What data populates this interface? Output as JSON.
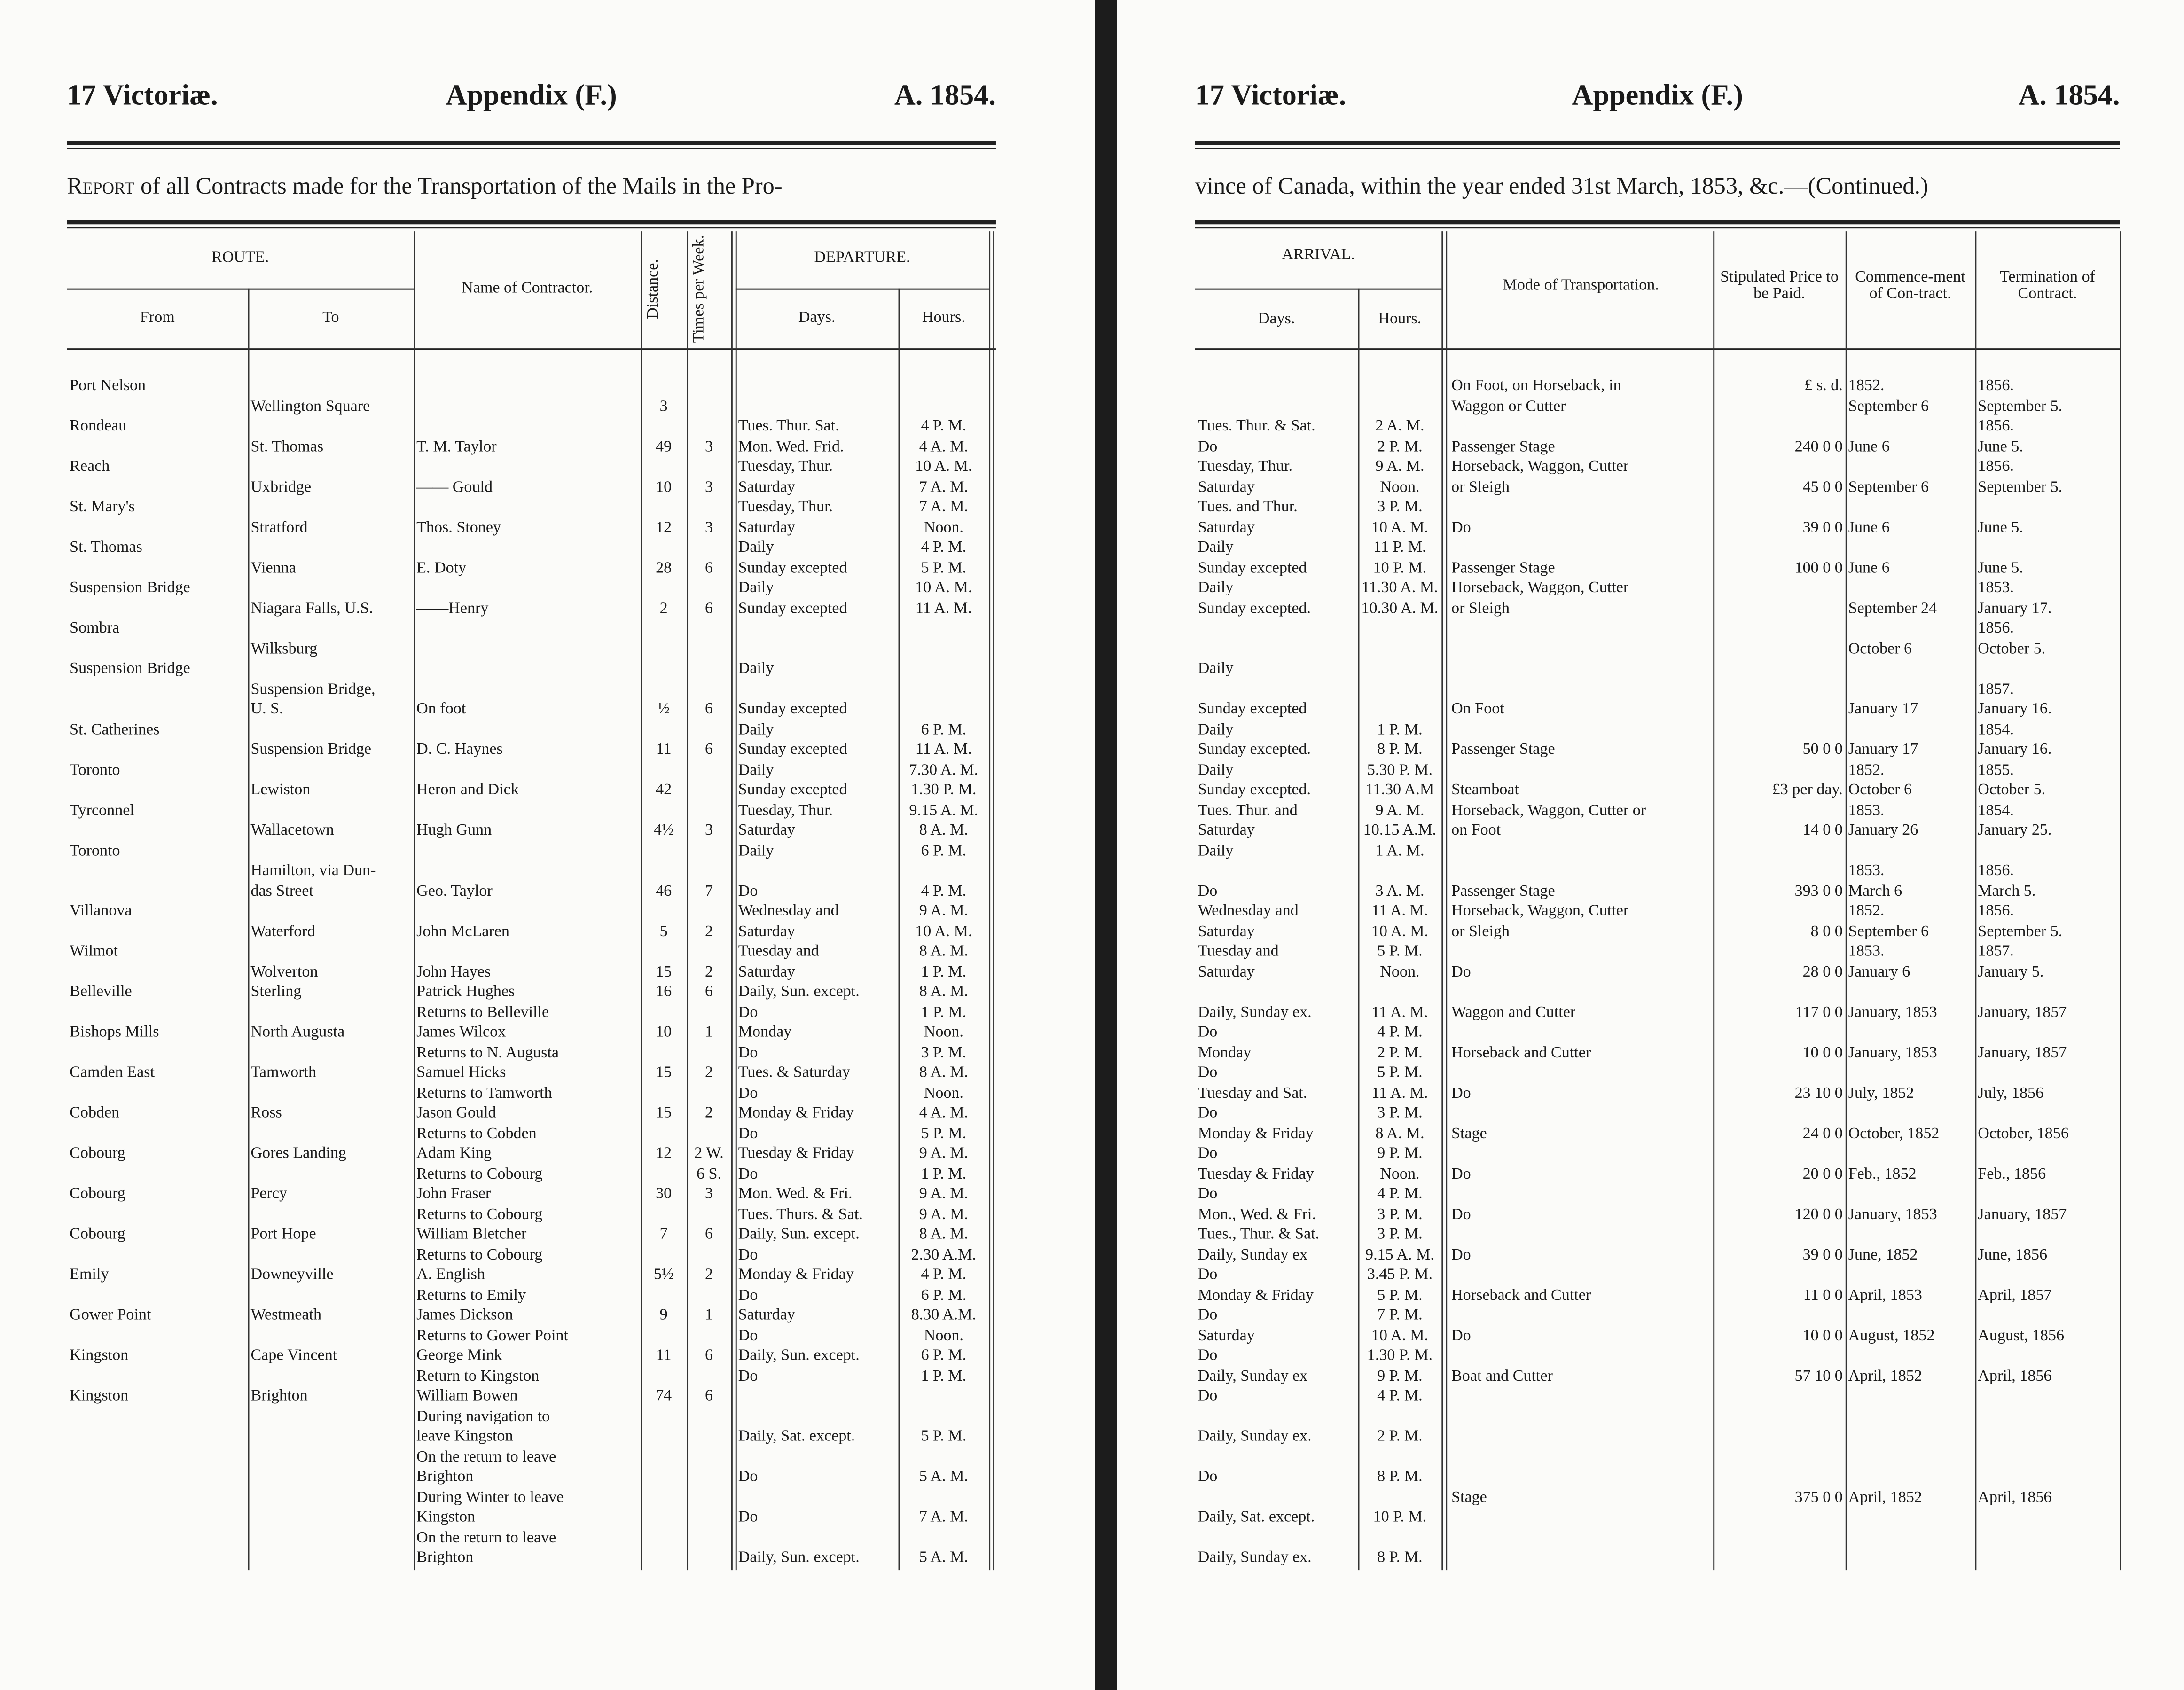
{
  "pages": [
    {
      "running_head": {
        "left": "17 Victoriæ.",
        "center": "Appendix (F.)",
        "right": "A. 1854."
      },
      "caption": {
        "lead": "Report",
        "text": "of all Contracts made for the Transportation of the Mails in the Pro-"
      },
      "table": {
        "headers": [
          "ROUTE.",
          "From",
          "To",
          "Name of Contractor.",
          "Distance.",
          "Times per Week.",
          "DEPARTURE.",
          "Days.",
          "Hours."
        ],
        "rows": [
          {
            "from": "Port Nelson"
          },
          {
            "to": "Wellington Square",
            "distance": "3"
          },
          {
            "from": "Rondeau",
            "days": "Tues. Thur. Sat.",
            "hours": "4 P. M."
          },
          {
            "to": "St. Thomas",
            "contractor": "T. M. Taylor",
            "distance": "49",
            "times": "3",
            "days": "Mon. Wed. Frid.",
            "hours": "4 A. M."
          },
          {
            "from": "Reach",
            "days": "Tuesday, Thur.",
            "hours": "10 A. M."
          },
          {
            "to": "Uxbridge",
            "contractor": "—— Gould",
            "distance": "10",
            "times": "3",
            "days": "Saturday",
            "hours": "7 A. M."
          },
          {
            "from": "St. Mary's",
            "days": "Tuesday, Thur.",
            "hours": "7 A. M."
          },
          {
            "to": "Stratford",
            "contractor": "Thos. Stoney",
            "distance": "12",
            "times": "3",
            "days": "Saturday",
            "hours": "Noon."
          },
          {
            "from": "St. Thomas",
            "days": "Daily",
            "hours": "4 P. M."
          },
          {
            "to": "Vienna",
            "contractor": "E. Doty",
            "distance": "28",
            "times": "6",
            "days": "Sunday excepted",
            "hours": "5 P. M."
          },
          {
            "from": "Suspension Bridge",
            "days": "Daily",
            "hours": "10 A. M."
          },
          {
            "to": "Niagara Falls, U.S.",
            "contractor": "——Henry",
            "distance": "2",
            "times": "6",
            "days": "Sunday excepted",
            "hours": "11 A. M."
          },
          {
            "from": "Sombra"
          },
          {
            "to": "Wilksburg"
          },
          {
            "from": "Suspension Bridge",
            "days": "Daily"
          },
          {
            "to": "Suspension Bridge,"
          },
          {
            "to": "U. S.",
            "contractor": "On foot",
            "distance": "½",
            "times": "6",
            "days": "Sunday excepted"
          },
          {
            "from": "St. Catherines",
            "days": "Daily",
            "hours": "6 P. M."
          },
          {
            "to": "Suspension Bridge",
            "contractor": "D. C. Haynes",
            "distance": "11",
            "times": "6",
            "days": "Sunday excepted",
            "hours": "11 A. M."
          },
          {
            "from": "Toronto",
            "days": "Daily",
            "hours": "7.30 A. M."
          },
          {
            "to": "Lewiston",
            "contractor": "Heron and Dick",
            "distance": "42",
            "days": "Sunday excepted",
            "hours": "1.30 P. M."
          },
          {
            "from": "Tyrconnel",
            "days": "Tuesday, Thur.",
            "hours": "9.15 A. M."
          },
          {
            "to": "Wallacetown",
            "contractor": "Hugh Gunn",
            "distance": "4½",
            "times": "3",
            "days": "Saturday",
            "hours": "8 A. M."
          },
          {
            "from": "Toronto",
            "days": "Daily",
            "hours": "6 P. M."
          },
          {
            "to": "Hamilton, via Dun-"
          },
          {
            "to": "das Street",
            "contractor": "Geo. Taylor",
            "distance": "46",
            "times": "7",
            "days": "Do",
            "hours": "4 P. M."
          },
          {
            "from": "Villanova",
            "days": "Wednesday and",
            "hours": "9 A. M."
          },
          {
            "to": "Waterford",
            "contractor": "John McLaren",
            "distance": "5",
            "times": "2",
            "days": "Saturday",
            "hours": "10 A. M."
          },
          {
            "from": "Wilmot",
            "days": "Tuesday and",
            "hours": "8 A. M."
          },
          {
            "to": "Wolverton",
            "contractor": "John Hayes",
            "distance": "15",
            "times": "2",
            "days": "Saturday",
            "hours": "1 P. M."
          },
          {
            "from": "Belleville",
            "to": "Sterling",
            "contractor": "Patrick Hughes",
            "distance": "16",
            "times": "6",
            "days": "Daily, Sun. except.",
            "hours": "8 A. M."
          },
          {
            "contractor": "Returns to Belleville",
            "days": "Do",
            "hours": "1 P. M."
          },
          {
            "from": "Bishops Mills",
            "to": "North Augusta",
            "contractor": "James Wilcox",
            "distance": "10",
            "times": "1",
            "days": "Monday",
            "hours": "Noon."
          },
          {
            "contractor": "Returns to N. Augusta",
            "days": "Do",
            "hours": "3 P. M."
          },
          {
            "from": "Camden East",
            "to": "Tamworth",
            "contractor": "Samuel Hicks",
            "distance": "15",
            "times": "2",
            "days": "Tues. & Saturday",
            "hours": "8 A. M."
          },
          {
            "contractor": "Returns to Tamworth",
            "days": "Do",
            "hours": "Noon."
          },
          {
            "from": "Cobden",
            "to": "Ross",
            "contractor": "Jason Gould",
            "distance": "15",
            "times": "2",
            "days": "Monday & Friday",
            "hours": "4 A. M."
          },
          {
            "contractor": "Returns to Cobden",
            "days": "Do",
            "hours": "5 P. M."
          },
          {
            "from": "Cobourg",
            "to": "Gores Landing",
            "contractor": "Adam King",
            "distance": "12",
            "times": "2 W.",
            "days": "Tuesday & Friday",
            "hours": "9 A. M."
          },
          {
            "contractor": "Returns to Cobourg",
            "times": "6 S.",
            "days": "Do",
            "hours": "1 P. M."
          },
          {
            "from": "Cobourg",
            "to": "Percy",
            "contractor": "John Fraser",
            "distance": "30",
            "times": "3",
            "days": "Mon. Wed. & Fri.",
            "hours": "9 A. M."
          },
          {
            "contractor": "Returns to Cobourg",
            "days": "Tues. Thurs. & Sat.",
            "hours": "9 A. M."
          },
          {
            "from": "Cobourg",
            "to": "Port Hope",
            "contractor": "William Bletcher",
            "distance": "7",
            "times": "6",
            "days": "Daily, Sun. except.",
            "hours": "8 A. M."
          },
          {
            "contractor": "Returns to Cobourg",
            "days": "Do",
            "hours": "2.30 A.M."
          },
          {
            "from": "Emily",
            "to": "Downeyville",
            "contractor": "A. English",
            "distance": "5½",
            "times": "2",
            "days": "Monday & Friday",
            "hours": "4 P. M."
          },
          {
            "contractor": "Returns to Emily",
            "days": "Do",
            "hours": "6 P. M."
          },
          {
            "from": "Gower Point",
            "to": "Westmeath",
            "contractor": "James Dickson",
            "distance": "9",
            "times": "1",
            "days": "Saturday",
            "hours": "8.30 A.M."
          },
          {
            "contractor": "Returns to Gower Point",
            "days": "Do",
            "hours": "Noon."
          },
          {
            "from": "Kingston",
            "to": "Cape Vincent",
            "contractor": "George Mink",
            "distance": "11",
            "times": "6",
            "days": "Daily, Sun. except.",
            "hours": "6 P. M."
          },
          {
            "contractor": "Return to Kingston",
            "days": "Do",
            "hours": "1 P. M."
          },
          {
            "from": "Kingston",
            "to": "Brighton",
            "contractor": "William Bowen",
            "distance": "74",
            "times": "6"
          },
          {
            "contractor": "During navigation to"
          },
          {
            "contractor": "leave Kingston",
            "days": "Daily, Sat. except.",
            "hours": "5 P. M."
          },
          {
            "contractor": "On the return to leave"
          },
          {
            "contractor": "Brighton",
            "days": "Do",
            "hours": "5 A. M."
          },
          {
            "contractor": "During Winter to leave"
          },
          {
            "contractor": "Kingston",
            "days": "Do",
            "hours": "7 A. M."
          },
          {
            "contractor": "On the return to leave"
          },
          {
            "contractor": "Brighton",
            "days": "Daily, Sun. except.",
            "hours": "5 A. M."
          }
        ]
      }
    },
    {
      "running_head": {
        "left": "17 Victoriæ.",
        "center": "Appendix (F.)",
        "right": "A. 1854."
      },
      "caption": {
        "text": "vince of Canada, within the year ended 31st March, 1853, &c.—(Continued.)"
      },
      "table": {
        "headers": [
          "ARRIVAL.",
          "Days.",
          "Hours.",
          "Mode of Transportation.",
          "Stipulated Price to be Paid.",
          "Commence-ment of Con-tract.",
          "Termination of Contract."
        ],
        "rows": [
          {
            "mode": "On Foot, on Horseback, in",
            "price": "£ s. d.",
            "commencement": "1852.",
            "termination": "1856."
          },
          {
            "mode": "Waggon or Cutter",
            "commencement": "September 6",
            "termination": "September 5."
          },
          {
            "days": "Tues. Thur. & Sat.",
            "hours": "2 A. M.",
            "termination": "1856."
          },
          {
            "days": "Do",
            "hours": "2 P. M.",
            "mode": "Passenger Stage",
            "price": "240  0  0",
            "commencement": "June 6",
            "termination": "June 5."
          },
          {
            "days": "Tuesday, Thur.",
            "hours": "9 A. M.",
            "mode": "Horseback, Waggon, Cutter",
            "termination": "1856."
          },
          {
            "days": "Saturday",
            "hours": "Noon.",
            "mode": "or Sleigh",
            "price": "45  0  0",
            "commencement": "September 6",
            "termination": "September 5."
          },
          {
            "days": "Tues. and Thur.",
            "hours": "3 P. M."
          },
          {
            "days": "Saturday",
            "hours": "10 A. M.",
            "mode": "Do",
            "price": "39  0  0",
            "commencement": "June 6",
            "termination": "June 5."
          },
          {
            "days": "Daily",
            "hours": "11 P. M."
          },
          {
            "days": "Sunday excepted",
            "hours": "10 P. M.",
            "mode": "Passenger Stage",
            "price": "100  0  0",
            "commencement": "June 6",
            "termination": "June 5."
          },
          {
            "days": "Daily",
            "hours": "11.30 A. M.",
            "mode": "Horseback, Waggon, Cutter",
            "termination": "1853."
          },
          {
            "days": "Sunday excepted.",
            "hours": "10.30 A. M.",
            "mode": "or Sleigh",
            "commencement": "September 24",
            "termination": "January 17."
          },
          {
            "termination": "1856."
          },
          {
            "commencement": "October 6",
            "termination": "October 5."
          },
          {
            "days": "Daily"
          },
          {
            "termination": "1857."
          },
          {
            "days": "Sunday excepted",
            "mode": "On Foot",
            "commencement": "January 17",
            "termination": "January 16."
          },
          {
            "days": "Daily",
            "hours": "1 P. M.",
            "termination": "1854."
          },
          {
            "days": "Sunday excepted.",
            "hours": "8 P. M.",
            "mode": "Passenger Stage",
            "price": "50  0  0",
            "commencement": "January 17",
            "termination": "January 16."
          },
          {
            "days": "Daily",
            "hours": "5.30 P. M.",
            "commencement": "1852.",
            "termination": "1855."
          },
          {
            "days": "Sunday excepted.",
            "hours": "11.30 A.M",
            "mode": "Steamboat",
            "price": "£3 per day.",
            "commencement": "October 6",
            "termination": "October 5."
          },
          {
            "days": "Tues. Thur. and",
            "hours": "9 A. M.",
            "mode": "Horseback, Waggon, Cutter or",
            "commencement": "1853.",
            "termination": "1854."
          },
          {
            "days": "Saturday",
            "hours": "10.15 A.M.",
            "mode": "on Foot",
            "price": "14  0  0",
            "commencement": "January 26",
            "termination": "January 25."
          },
          {
            "days": "Daily",
            "hours": "1 A. M."
          },
          {
            "commencement": "1853.",
            "termination": "1856."
          },
          {
            "days": "Do",
            "hours": "3 A. M.",
            "mode": "Passenger Stage",
            "price": "393  0  0",
            "commencement": "March 6",
            "termination": "March 5."
          },
          {
            "days": "Wednesday and",
            "hours": "11 A. M.",
            "mode": "Horseback, Waggon, Cutter",
            "commencement": "1852.",
            "termination": "1856."
          },
          {
            "days": "Saturday",
            "hours": "10 A. M.",
            "mode": "or Sleigh",
            "price": "8  0  0",
            "commencement": "September 6",
            "termination": "September 5."
          },
          {
            "days": "Tuesday and",
            "hours": "5 P. M.",
            "commencement": "1853.",
            "termination": "1857."
          },
          {
            "days": "Saturday",
            "hours": "Noon.",
            "mode": "Do",
            "price": "28  0  0",
            "commencement": "January 6",
            "termination": "January 5."
          },
          {},
          {
            "days": "Daily, Sunday ex.",
            "hours": "11 A. M.",
            "mode": "Waggon and Cutter",
            "price": "117  0  0",
            "commencement": "January, 1853",
            "termination": "January, 1857"
          },
          {
            "days": "Do",
            "hours": "4 P. M."
          },
          {
            "days": "Monday",
            "hours": "2 P. M.",
            "mode": "Horseback and Cutter",
            "price": "10  0  0",
            "commencement": "January, 1853",
            "termination": "January, 1857"
          },
          {
            "days": "Do",
            "hours": "5 P. M."
          },
          {
            "days": "Tuesday and Sat.",
            "hours": "11 A. M.",
            "mode": "Do",
            "price": "23 10  0",
            "commencement": "July, 1852",
            "termination": "July, 1856"
          },
          {
            "days": "Do",
            "hours": "3 P. M."
          },
          {
            "days": "Monday & Friday",
            "hours": "8 A. M.",
            "mode": "Stage",
            "price": "24  0  0",
            "commencement": "October, 1852",
            "termination": "October, 1856"
          },
          {
            "days": "Do",
            "hours": "9 P. M."
          },
          {
            "days": "Tuesday & Friday",
            "hours": "Noon.",
            "mode": "Do",
            "price": "20  0  0",
            "commencement": "Feb., 1852",
            "termination": "Feb., 1856"
          },
          {
            "days": "Do",
            "hours": "4 P. M."
          },
          {
            "days": "Mon., Wed. & Fri.",
            "hours": "3 P. M.",
            "mode": "Do",
            "price": "120  0  0",
            "commencement": "January, 1853",
            "termination": "January, 1857"
          },
          {
            "days": "Tues., Thur. & Sat.",
            "hours": "3 P. M."
          },
          {
            "days": "Daily, Sunday ex",
            "hours": "9.15 A. M.",
            "mode": "Do",
            "price": "39  0  0",
            "commencement": "June, 1852",
            "termination": "June, 1856"
          },
          {
            "days": "Do",
            "hours": "3.45 P. M."
          },
          {
            "days": "Monday & Friday",
            "hours": "5 P. M.",
            "mode": "Horseback and Cutter",
            "price": "11  0  0",
            "commencement": "April, 1853",
            "termination": "April, 1857"
          },
          {
            "days": "Do",
            "hours": "7 P. M."
          },
          {
            "days": "Saturday",
            "hours": "10 A. M.",
            "mode": "Do",
            "price": "10  0  0",
            "commencement": "August, 1852",
            "termination": "August, 1856"
          },
          {
            "days": "Do",
            "hours": "1.30 P. M."
          },
          {
            "days": "Daily, Sunday ex",
            "hours": "9 P. M.",
            "mode": "Boat and Cutter",
            "price": "57 10  0",
            "commencement": "April, 1852",
            "termination": "April, 1856"
          },
          {
            "days": "Do",
            "hours": "4 P. M."
          },
          {},
          {
            "days": "Daily, Sunday ex.",
            "hours": "2 P. M."
          },
          {},
          {
            "days": "Do",
            "hours": "8 P. M."
          },
          {
            "mode": "Stage",
            "price": "375  0  0",
            "commencement": "April, 1852",
            "termination": "April, 1856"
          },
          {
            "days": "Daily, Sat. except.",
            "hours": "10 P. M."
          },
          {},
          {
            "days": "Daily, Sunday ex.",
            "hours": "8 P. M."
          }
        ]
      }
    }
  ]
}
